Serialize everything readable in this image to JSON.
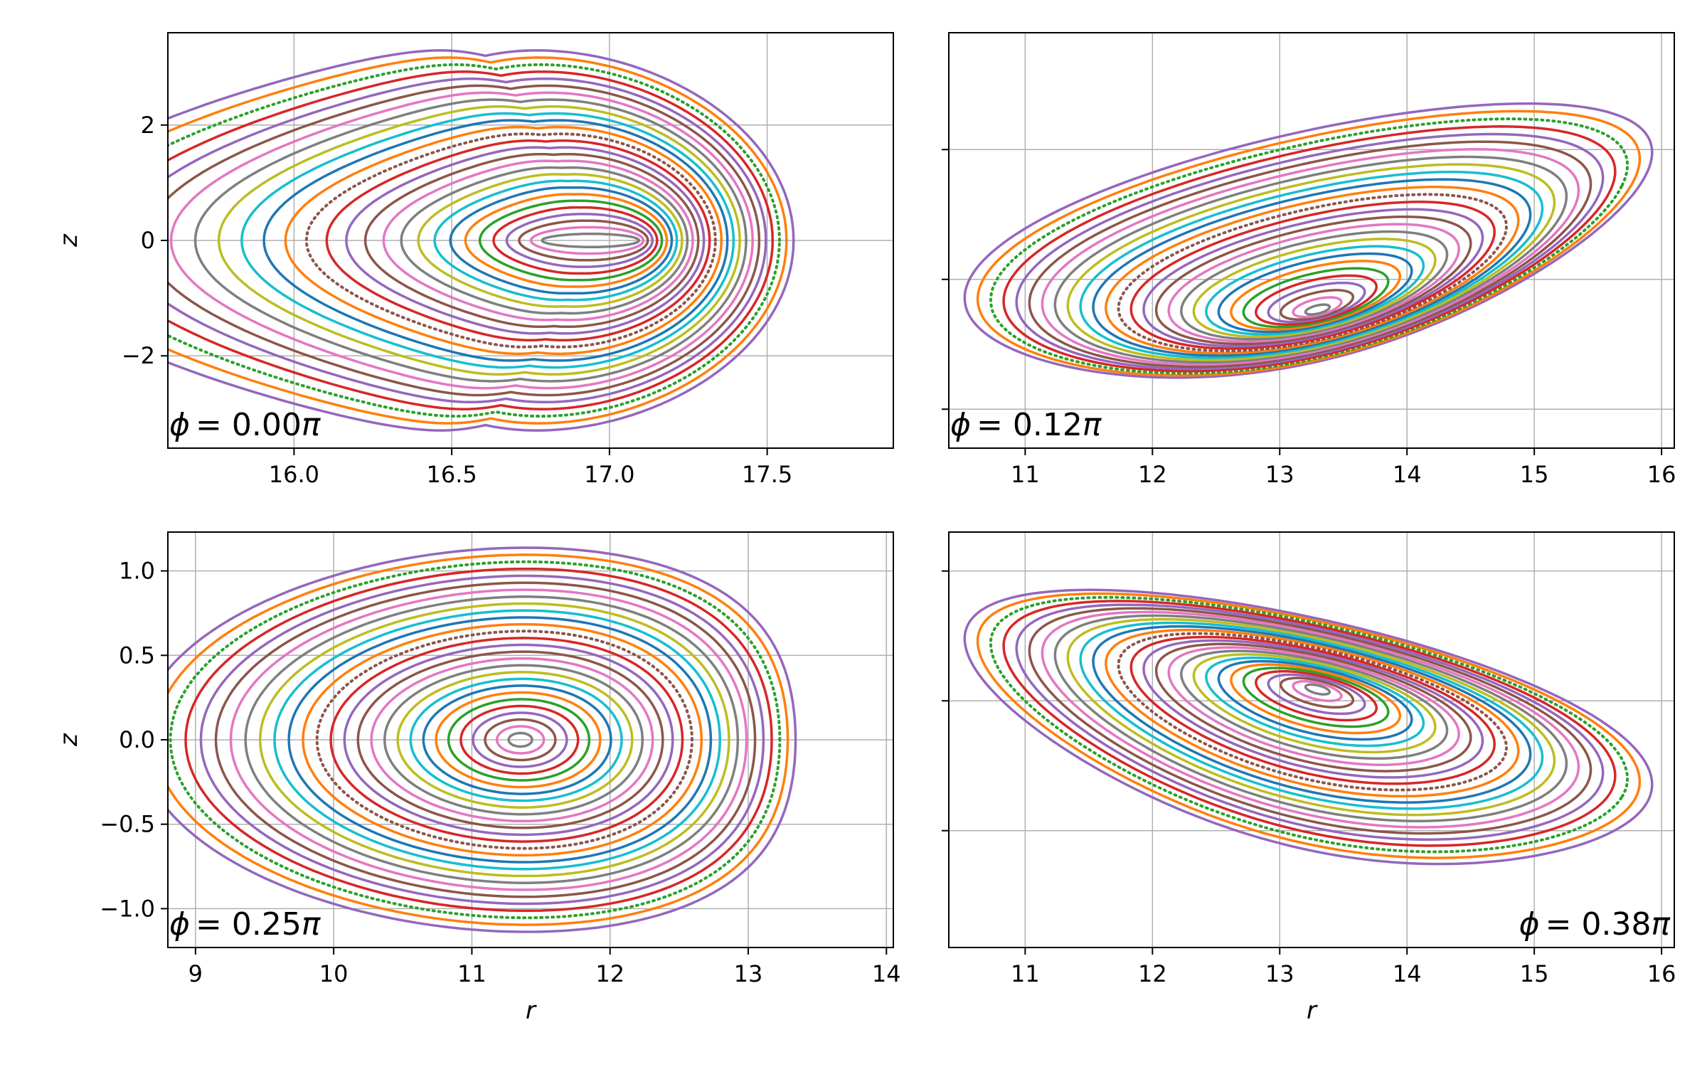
{
  "chart_data": [
    {
      "type": "scatter",
      "panel_label": "ϕ = 0.00π",
      "label_phi_symbol": "ϕ",
      "label_value": "= 0.00",
      "label_pi": "π",
      "label_corner": "bottom-left",
      "xlabel": "",
      "ylabel": "z",
      "xlim": [
        15.6,
        17.9
      ],
      "ylim": [
        -3.6,
        3.6
      ],
      "xticks": [
        16.0,
        16.5,
        17.0,
        17.5
      ],
      "xtick_labels": [
        "16.0",
        "16.5",
        "17.0",
        "17.5"
      ],
      "yticks": [
        -2,
        0,
        2
      ],
      "ytick_labels": [
        "−2",
        "0",
        "2"
      ],
      "show_ytick_labels": true,
      "grid": true,
      "shape": "bean",
      "axis_center": [
        16.95,
        0.0
      ],
      "outer_extent": {
        "r": [
          15.7,
          17.8
        ],
        "z": [
          -3.2,
          3.2
        ]
      },
      "surfaces": 28
    },
    {
      "type": "scatter",
      "panel_label": "ϕ = 0.12π",
      "label_phi_symbol": "ϕ",
      "label_value": "= 0.12",
      "label_pi": "π",
      "label_corner": "bottom-left",
      "xlabel": "",
      "ylabel": "",
      "xlim": [
        10.4,
        16.1
      ],
      "ylim": [
        -1.3,
        1.9
      ],
      "xticks": [
        11,
        12,
        13,
        14,
        15,
        16
      ],
      "xtick_labels": [
        "11",
        "12",
        "13",
        "14",
        "15",
        "16"
      ],
      "yticks": [
        -1,
        0,
        1
      ],
      "ytick_labels": [
        "",
        "",
        ""
      ],
      "show_ytick_labels": false,
      "grid": true,
      "shape": "tilted",
      "tilt": "up-right",
      "axis_center": [
        13.3,
        -0.25
      ],
      "outer_extent": {
        "r": [
          10.5,
          15.8
        ],
        "z": [
          -1.2,
          1.7
        ]
      },
      "surfaces": 28
    },
    {
      "type": "scatter",
      "panel_label": "ϕ = 0.25π",
      "label_phi_symbol": "ϕ",
      "label_value": "= 0.25",
      "label_pi": "π",
      "label_corner": "bottom-left",
      "xlabel": "r",
      "ylabel": "z",
      "xlim": [
        8.8,
        14.05
      ],
      "ylim": [
        -1.23,
        1.23
      ],
      "xticks": [
        9,
        10,
        11,
        12,
        13,
        14
      ],
      "xtick_labels": [
        "9",
        "10",
        "11",
        "12",
        "13",
        "14"
      ],
      "yticks": [
        -1.0,
        -0.5,
        0.0,
        0.5,
        1.0
      ],
      "ytick_labels": [
        "−1.0",
        "−0.5",
        "0.0",
        "0.5",
        "1.0"
      ],
      "show_ytick_labels": true,
      "grid": true,
      "shape": "egg",
      "axis_center": [
        11.35,
        0.0
      ],
      "outer_extent": {
        "r": [
          9.05,
          13.8
        ],
        "z": [
          -1.12,
          1.12
        ]
      },
      "surfaces": 28
    },
    {
      "type": "scatter",
      "panel_label": "ϕ = 0.38π",
      "label_phi_symbol": "ϕ",
      "label_value": "= 0.38",
      "label_pi": "π",
      "label_corner": "bottom-right",
      "xlabel": "r",
      "ylabel": "",
      "xlim": [
        10.4,
        16.1
      ],
      "ylim": [
        -1.9,
        1.3
      ],
      "xticks": [
        11,
        12,
        13,
        14,
        15,
        16
      ],
      "xtick_labels": [
        "11",
        "12",
        "13",
        "14",
        "15",
        "16"
      ],
      "yticks": [
        -1,
        0,
        1
      ],
      "ytick_labels": [
        "",
        "",
        ""
      ],
      "show_ytick_labels": false,
      "grid": true,
      "shape": "tilted",
      "tilt": "down-right",
      "axis_center": [
        13.3,
        0.1
      ],
      "outer_extent": {
        "r": [
          10.5,
          15.8
        ],
        "z": [
          -1.7,
          1.2
        ]
      },
      "surfaces": 28
    }
  ],
  "style": {
    "palette": [
      "#1f77b4",
      "#ff7f0e",
      "#2ca02c",
      "#d62728",
      "#9467bd",
      "#8c564b",
      "#e377c2",
      "#7f7f7f",
      "#bcbd22",
      "#17becf"
    ],
    "grid_color": "#b0b0b0",
    "outer_color": "#9467bd",
    "dotted_surface_colors": [
      "#2ca02c",
      "#8c564b"
    ]
  }
}
